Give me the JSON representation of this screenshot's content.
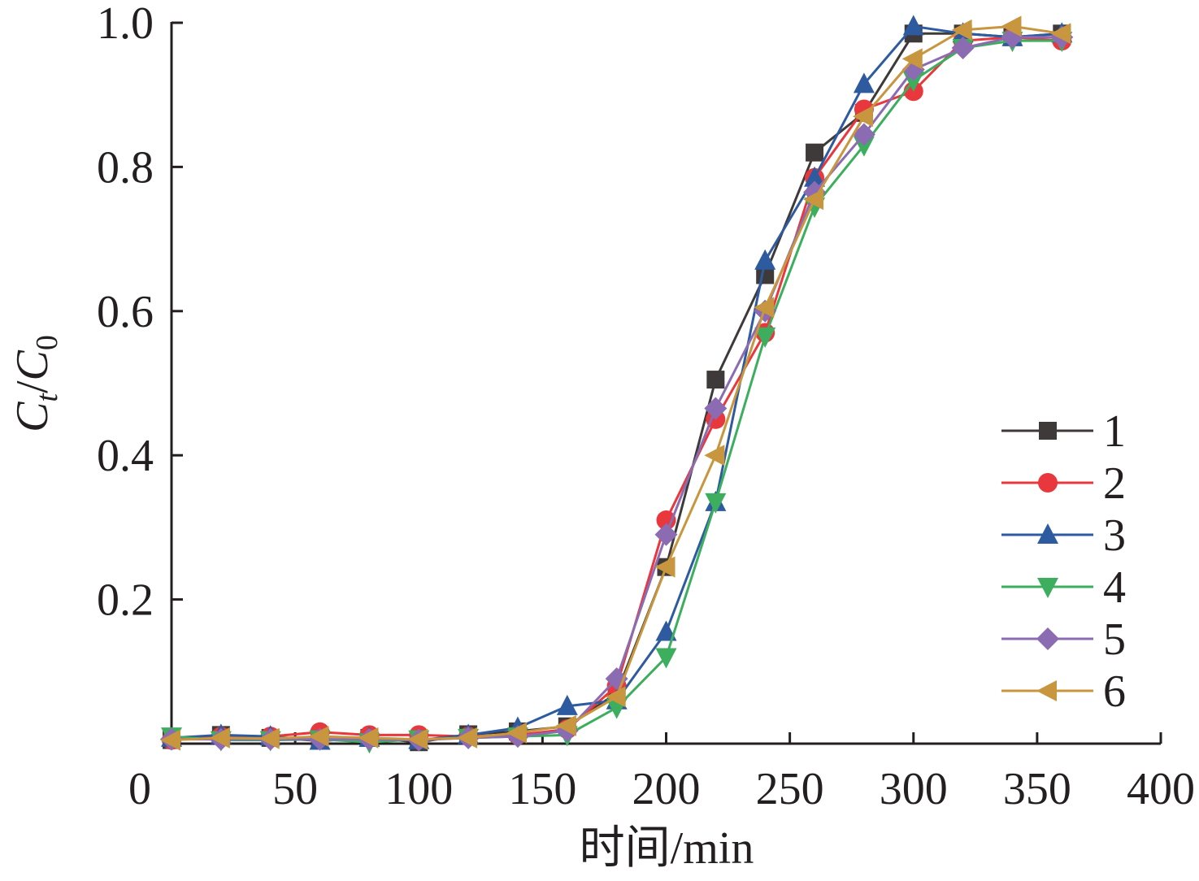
{
  "chart_data": {
    "type": "line",
    "xlabel": "时间/min",
    "ylabel": {
      "main1": "C",
      "sub1": "t",
      "slash": "/",
      "main2": "C",
      "sub2": "0"
    },
    "xlim": [
      0,
      400
    ],
    "ylim": [
      0,
      1.0
    ],
    "x_ticks": [
      {
        "value": 0,
        "label": "0"
      },
      {
        "value": 50,
        "label": "50"
      },
      {
        "value": 100,
        "label": "100"
      },
      {
        "value": 150,
        "label": "150"
      },
      {
        "value": 200,
        "label": "200"
      },
      {
        "value": 250,
        "label": "250"
      },
      {
        "value": 300,
        "label": "300"
      },
      {
        "value": 350,
        "label": "350"
      },
      {
        "value": 400,
        "label": "400"
      }
    ],
    "y_ticks": [
      {
        "value": 0.2,
        "label": "0.2"
      },
      {
        "value": 0.4,
        "label": "0.4"
      },
      {
        "value": 0.6,
        "label": "0.6"
      },
      {
        "value": 0.8,
        "label": "0.8"
      },
      {
        "value": 1.0,
        "label": "1.0"
      }
    ],
    "grid": false,
    "legend_position": "right",
    "x": [
      0,
      20,
      40,
      60,
      80,
      100,
      120,
      140,
      160,
      180,
      200,
      220,
      240,
      260,
      280,
      300,
      320,
      340,
      360
    ],
    "series": [
      {
        "name": "1",
        "color": "#3e3a39",
        "marker": "square",
        "values": [
          0.005,
          0.012,
          0.008,
          0.004,
          0.008,
          0.002,
          0.013,
          0.017,
          0.024,
          0.07,
          0.245,
          0.505,
          0.65,
          0.82,
          0.875,
          0.985,
          0.985,
          0.98,
          0.985
        ]
      },
      {
        "name": "2",
        "color": "#e8383d",
        "marker": "circle",
        "values": [
          0.005,
          0.01,
          0.01,
          0.016,
          0.012,
          0.012,
          0.01,
          0.012,
          0.02,
          0.08,
          0.31,
          0.45,
          0.57,
          0.785,
          0.88,
          0.905,
          0.975,
          0.98,
          0.975
        ]
      },
      {
        "name": "3",
        "color": "#2e5aa0",
        "marker": "triangle-up",
        "values": [
          0.008,
          0.012,
          0.01,
          0.004,
          0.008,
          0.005,
          0.012,
          0.022,
          0.052,
          0.06,
          0.155,
          0.335,
          0.67,
          0.785,
          0.915,
          0.995,
          0.985,
          0.98,
          0.985
        ]
      },
      {
        "name": "4",
        "color": "#3cae5e",
        "marker": "triangle-down",
        "values": [
          0.01,
          0.005,
          0.005,
          0.006,
          0.002,
          0.006,
          0.008,
          0.01,
          0.012,
          0.05,
          0.12,
          0.335,
          0.565,
          0.745,
          0.83,
          0.92,
          0.965,
          0.975,
          0.975
        ]
      },
      {
        "name": "5",
        "color": "#8b6bb1",
        "marker": "diamond",
        "values": [
          0.006,
          0.006,
          0.006,
          0.006,
          0.006,
          0.005,
          0.008,
          0.01,
          0.018,
          0.09,
          0.29,
          0.465,
          0.6,
          0.765,
          0.845,
          0.935,
          0.965,
          0.98,
          0.98
        ]
      },
      {
        "name": "6",
        "color": "#c8963e",
        "marker": "triangle-left",
        "values": [
          0.005,
          0.008,
          0.007,
          0.01,
          0.008,
          0.006,
          0.008,
          0.015,
          0.025,
          0.065,
          0.245,
          0.4,
          0.605,
          0.755,
          0.87,
          0.95,
          0.99,
          0.995,
          0.985
        ]
      }
    ]
  }
}
